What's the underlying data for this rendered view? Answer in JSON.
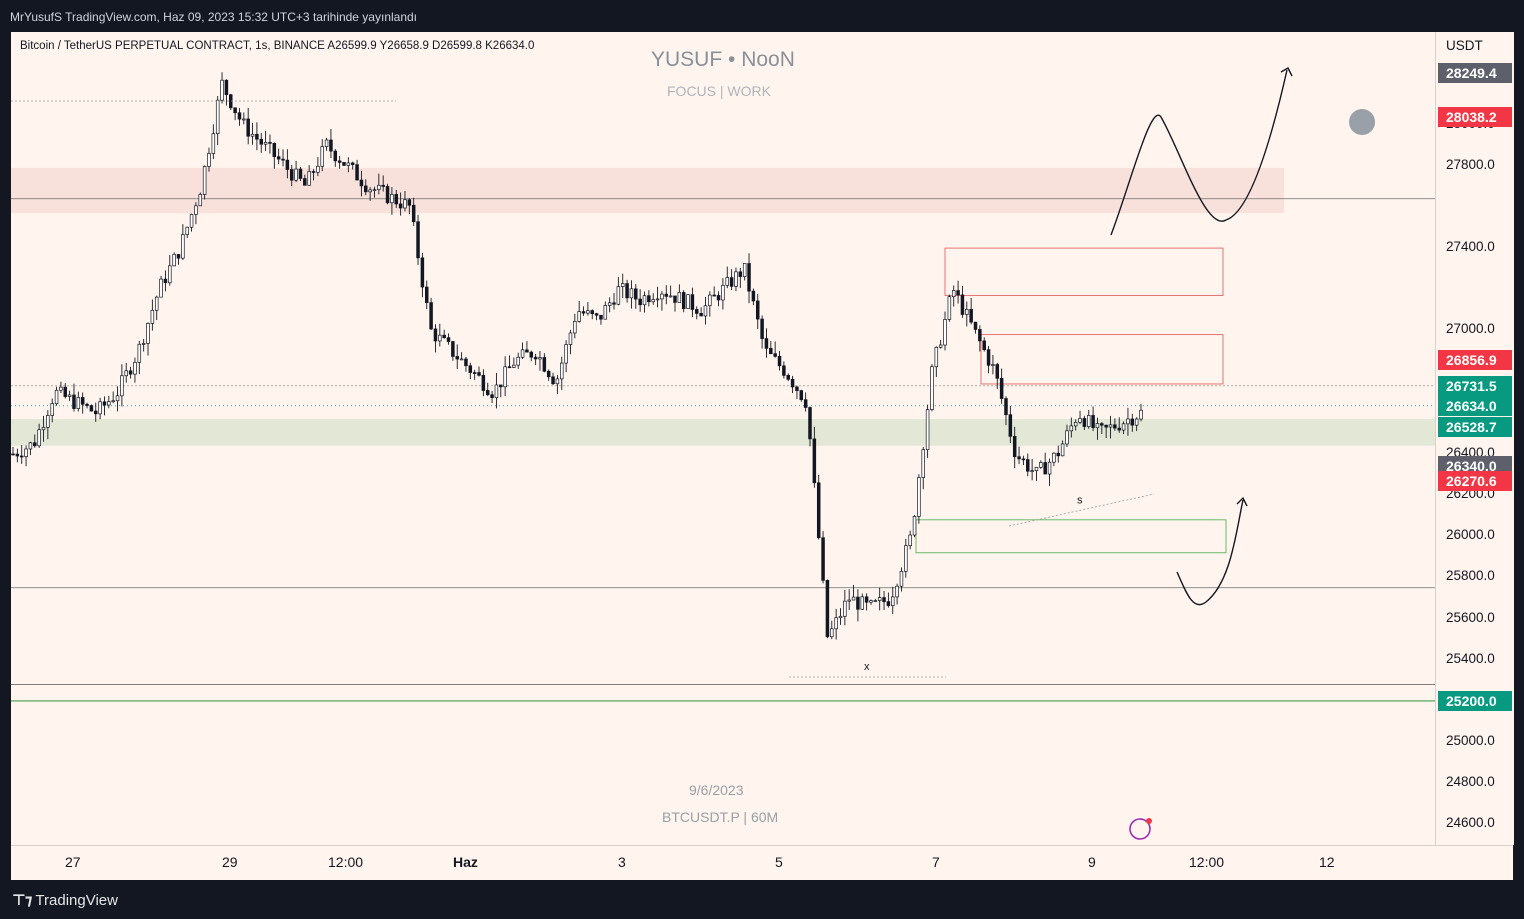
{
  "header": {
    "published": "MrYusufS TradingView.com, Haz 09, 2023 15:32 UTC+3 tarihinde yayınlandı"
  },
  "legend": {
    "text": "Bitcoin / TetherUS PERPETUAL CONTRACT, 1s, BINANCE  A26599.9  Y26658.9  D26599.8  K26634.0"
  },
  "watermark": {
    "title": "YUSUF • NooN",
    "subtitle": "FOCUS | WORK",
    "date": "9/6/2023",
    "symbol": "BTCUSDT.P | 60M"
  },
  "brand": {
    "name": "TradingView",
    "icon": "tradingview-logo-icon"
  },
  "colors": {
    "background": "#fff5ee",
    "up": "#131722",
    "down": "#131722",
    "green_tag": "#089981",
    "red_tag": "#f23645",
    "grey_tag": "#5d606b",
    "green_line": "#4caf50"
  },
  "chart_data": {
    "type": "candlestick",
    "symbol": "BTCUSDT.P",
    "interval": "1s",
    "ylim": [
      24500,
      28450
    ],
    "price_axis": {
      "unit": "USDT",
      "ticks": [
        "28000.0",
        "27800.0",
        "27400.0",
        "27000.0",
        "26400.0",
        "26200.0",
        "26000.0",
        "25800.0",
        "25600.0",
        "25400.0",
        "25000.0",
        "24800.0",
        "24600.0"
      ],
      "tags": [
        {
          "value": "28249.4",
          "kind": "grey"
        },
        {
          "value": "28038.2",
          "kind": "red"
        },
        {
          "value": "26856.9",
          "kind": "red"
        },
        {
          "value": "26731.5",
          "kind": "green"
        },
        {
          "value": "26634.0",
          "kind": "green"
        },
        {
          "value": "26528.7",
          "kind": "green"
        },
        {
          "value": "26340.0",
          "kind": "grey"
        },
        {
          "value": "26270.6",
          "kind": "red"
        },
        {
          "value": "25200.0",
          "kind": "green"
        }
      ]
    },
    "time_axis": [
      "27",
      "29",
      "12:00",
      "Haz",
      "3",
      "5",
      "7",
      "9",
      "12:00",
      "12"
    ],
    "annotations": [
      {
        "text": "x",
        "price": 25370
      },
      {
        "text": "s",
        "price": 26170
      }
    ],
    "key_prices": [
      {
        "price": 27640,
        "note": "horizontal line"
      },
      {
        "price": 25750,
        "note": "horizontal line"
      },
      {
        "price": 25280,
        "note": "horizontal line"
      },
      {
        "price": 25200,
        "note": "green line"
      },
      {
        "price": 26731.5,
        "note": "dotted line"
      },
      {
        "price": 26634.0,
        "note": "current price"
      }
    ],
    "zones": [
      {
        "from": 27570,
        "to": 27790,
        "color": "red-shaded"
      },
      {
        "from": 26440,
        "to": 26570,
        "color": "green-shaded"
      },
      {
        "from": 27170,
        "to": 27400,
        "color": "red-outline"
      },
      {
        "from": 26740,
        "to": 26980,
        "color": "red-outline"
      },
      {
        "from": 25920,
        "to": 26080,
        "color": "green-outline"
      }
    ],
    "series_path": [
      26400,
      26450,
      26700,
      26650,
      26600,
      26700,
      26900,
      27200,
      27400,
      27700,
      28200,
      28000,
      27900,
      27800,
      27700,
      27900,
      27800,
      27700,
      27650,
      27600,
      27000,
      26900,
      26800,
      26700,
      26850,
      26900,
      26750,
      27100,
      27050,
      27200,
      27150,
      27200,
      27150,
      27100,
      27200,
      27300,
      26900,
      26800,
      26650,
      25500,
      25700,
      25650,
      25700,
      26000,
      26800,
      27200,
      27000,
      26800,
      26400,
      26300,
      26400,
      26600,
      26500,
      26550,
      26600
    ]
  }
}
